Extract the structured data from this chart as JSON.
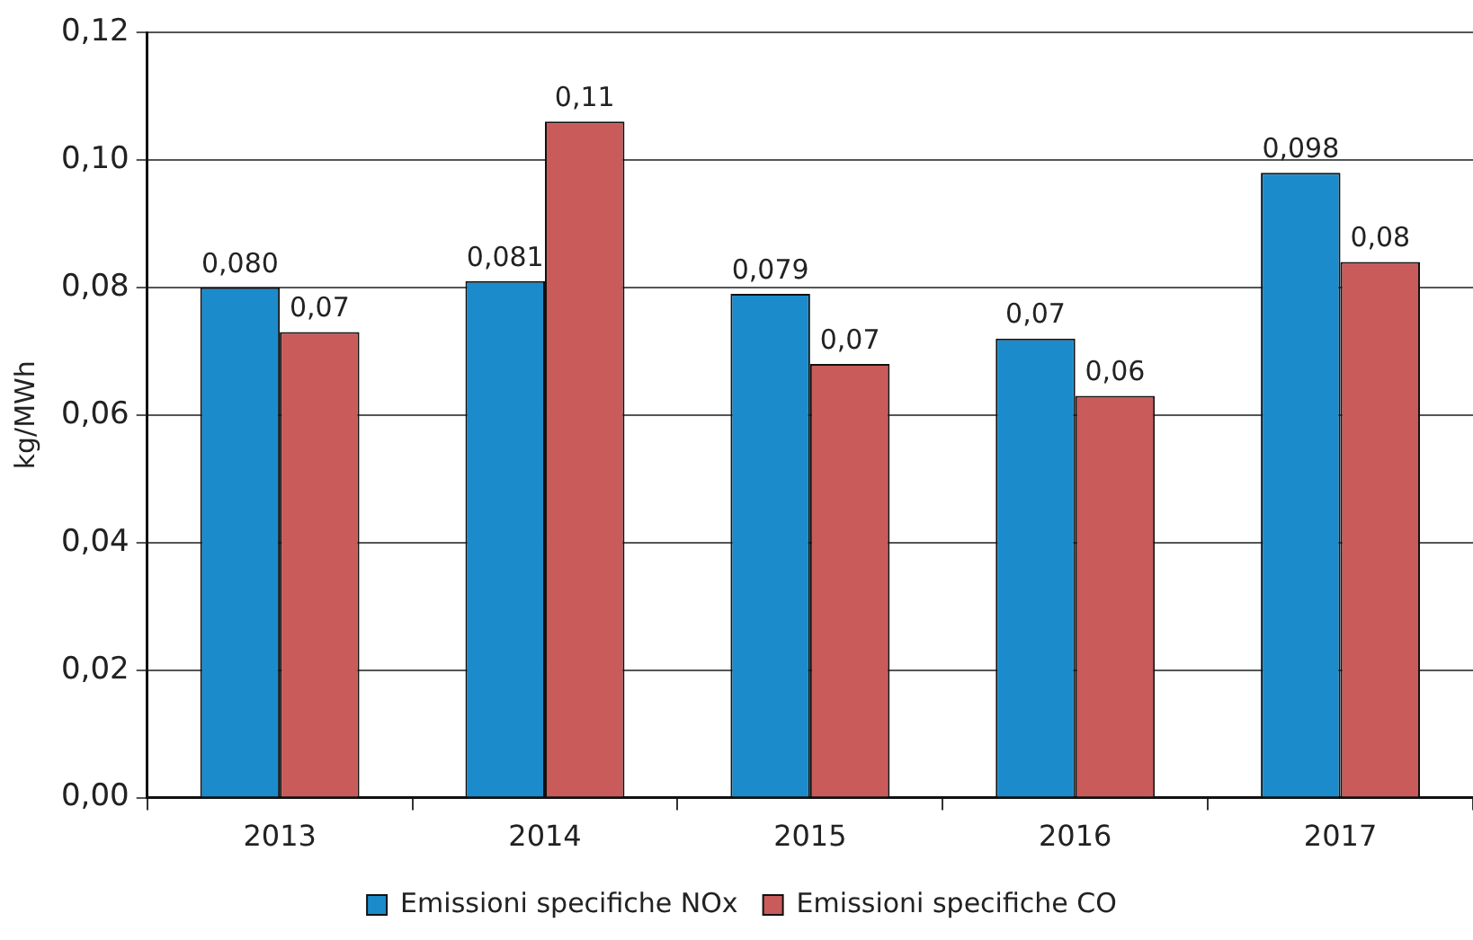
{
  "chart_data": {
    "type": "bar",
    "ylabel": "kg/MWh",
    "categories": [
      "2013",
      "2014",
      "2015",
      "2016",
      "2017"
    ],
    "series": [
      {
        "name": "Emissioni specifiche NOx",
        "color": "#1b8bcb",
        "values": [
          0.08,
          0.081,
          0.079,
          0.072,
          0.098
        ],
        "value_labels": [
          "0,080",
          "0,081",
          "0,079",
          "0,07",
          "0,098"
        ]
      },
      {
        "name": "Emissioni specifiche CO",
        "color": "#c95b5b",
        "values": [
          0.073,
          0.106,
          0.068,
          0.063,
          0.084
        ],
        "value_labels": [
          "0,07",
          "0,11",
          "0,07",
          "0,06",
          "0,08"
        ]
      }
    ],
    "ylim": [
      0,
      0.12
    ],
    "yticks": [
      {
        "value": 0,
        "label": "0,00"
      },
      {
        "value": 0.02,
        "label": "0,02"
      },
      {
        "value": 0.04,
        "label": "0,04"
      },
      {
        "value": 0.06,
        "label": "0,06"
      },
      {
        "value": 0.08,
        "label": "0,08"
      },
      {
        "value": 0.1,
        "label": "0,10"
      },
      {
        "value": 0.12,
        "label": "0,12"
      }
    ],
    "grid": "y",
    "legend": "bottom"
  }
}
